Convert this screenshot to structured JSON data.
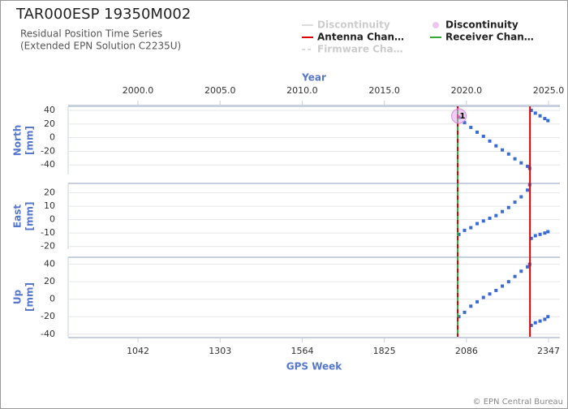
{
  "chart_data": {
    "type": "scatter",
    "title": "TAR000ESP 19350M002",
    "subtitle": [
      "Residual Position Time Series",
      "(Extended EPN Solution C2235U)"
    ],
    "x_label": "GPS Week",
    "xlim": [
      820,
      2383
    ],
    "xticks": [
      1042,
      1303,
      1564,
      1825,
      2086,
      2347
    ],
    "top_axis": {
      "label": "Year",
      "xlim": [
        1995.75,
        2025.69
      ],
      "xticks": [
        {
          "value": 2000,
          "label": "2000.0"
        },
        {
          "value": 2005,
          "label": "2005.0"
        },
        {
          "value": 2010,
          "label": "2010.0"
        },
        {
          "value": 2015,
          "label": "2015.0"
        },
        {
          "value": 2020,
          "label": "2020.0"
        },
        {
          "value": 2025,
          "label": "2025.0"
        }
      ]
    },
    "legend": [
      {
        "name": "Discontinuity",
        "color": "#dddddd",
        "marker": "line",
        "faded": true
      },
      {
        "name": "Antenna Chan…",
        "color": "#dd0000",
        "marker": "line",
        "faded": false
      },
      {
        "name": "Firmware Cha…",
        "color": "#dddddd",
        "marker": "dash",
        "faded": true
      },
      {
        "name": "Discontinuity",
        "color": "#e0a0e8",
        "marker": "circle",
        "faded": false
      },
      {
        "name": "Receiver Chan…",
        "color": "#33aa33",
        "marker": "line",
        "faded": false
      }
    ],
    "antenna_changes": [
      2058,
      2288
    ],
    "receiver_changes": [
      2058
    ],
    "discontinuities": [
      {
        "week": 2062,
        "label": "1"
      }
    ],
    "color": "#3a6bd4",
    "x": [
      2062,
      2080,
      2100,
      2120,
      2140,
      2160,
      2180,
      2200,
      2220,
      2240,
      2260,
      2280,
      2287,
      2292,
      2305,
      2320,
      2335,
      2345
    ],
    "panels": [
      {
        "ylabel": "North",
        "yunit": "[mm]",
        "ylim": [
          -54,
          46
        ],
        "yticks": [
          -40,
          -20,
          0,
          20,
          40
        ],
        "values": [
          30,
          22,
          15,
          8,
          2,
          -5,
          -12,
          -18,
          -24,
          -31,
          -37,
          -42,
          -45,
          40,
          36,
          32,
          28,
          25
        ]
      },
      {
        "ylabel": "East",
        "yunit": "[mm]",
        "ylim": [
          -22,
          27
        ],
        "yticks": [
          -20,
          -10,
          0,
          10,
          20
        ],
        "values": [
          -11,
          -8,
          -6,
          -3,
          -1,
          1,
          3,
          6,
          9,
          13,
          17,
          22,
          26,
          -14,
          -12,
          -11,
          -10,
          -9
        ]
      },
      {
        "ylabel": "Up",
        "yunit": "[mm]",
        "ylim": [
          -43,
          48
        ],
        "yticks": [
          -40,
          -20,
          0,
          20,
          40
        ],
        "values": [
          -20,
          -15,
          -8,
          -3,
          2,
          6,
          10,
          15,
          20,
          26,
          32,
          37,
          40,
          -30,
          -27,
          -25,
          -23,
          -20
        ]
      }
    ],
    "footer": "© EPN Central Bureau"
  }
}
